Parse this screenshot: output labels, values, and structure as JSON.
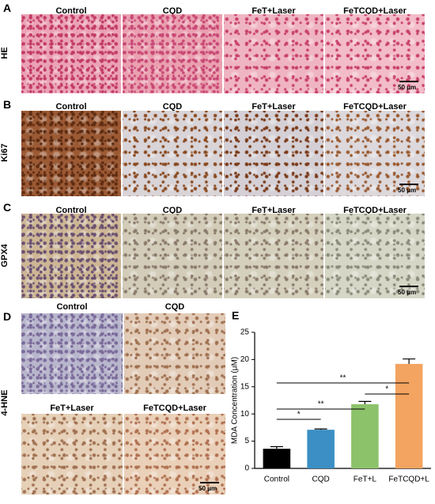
{
  "panels": [
    {
      "letter": "A",
      "row_label": "HE",
      "columns": [
        "Control",
        "CQD",
        "FeT+Laser",
        "FeTCQD+Laser"
      ],
      "scale_bar": "50 μm"
    },
    {
      "letter": "B",
      "row_label": "Ki67",
      "columns": [
        "Control",
        "CQD",
        "FeT+Laser",
        "FeTCQD+Laser"
      ],
      "scale_bar": "50 μm"
    },
    {
      "letter": "C",
      "row_label": "GPX4",
      "columns": [
        "Control",
        "CQD",
        "FeT+Laser",
        "FeTCQD+Laser"
      ],
      "scale_bar": "50 μm"
    },
    {
      "letter": "D",
      "row_label": "4-HNE",
      "columns": [
        "Control",
        "CQD",
        "FeT+Laser",
        "FeTCQD+Laser"
      ],
      "scale_bar": "50 μm"
    }
  ],
  "chart_data": {
    "type": "bar",
    "letter": "E",
    "ylabel": "MDA Concentration (μM)",
    "categories": [
      "Control",
      "CQD",
      "FeT+L",
      "FeTCQD+L"
    ],
    "values": [
      3.6,
      7.1,
      11.8,
      19.2
    ],
    "errors": [
      0.4,
      0.15,
      0.5,
      0.9
    ],
    "colors": [
      "#000000",
      "#3b8fc4",
      "#8cc36a",
      "#f3a460"
    ],
    "ylim": [
      0,
      25
    ],
    "yticks": [
      0,
      5,
      10,
      15,
      20,
      25
    ],
    "significance": [
      "*",
      "**",
      "*",
      "**"
    ]
  }
}
